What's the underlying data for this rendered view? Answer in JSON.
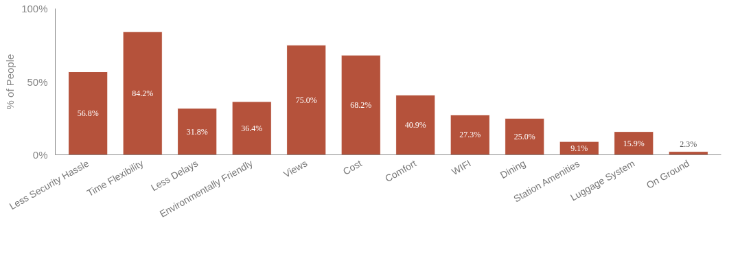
{
  "chart_data": {
    "type": "bar",
    "ylabel": "% of People",
    "categories": [
      "Less Security Hassle",
      "Time Flexibility",
      "Less Delays",
      "Environmentally Friendly",
      "Views",
      "Cost",
      "Comfort",
      "WIFI",
      "Dining",
      "Station Amenities",
      "Luggage System",
      "On Ground"
    ],
    "values": [
      56.8,
      84.2,
      31.8,
      36.4,
      75.0,
      68.2,
      40.9,
      27.3,
      25.0,
      9.1,
      15.9,
      2.3
    ],
    "value_labels": [
      "56.8%",
      "84.2%",
      "31.8%",
      "36.4%",
      "75.0%",
      "68.2%",
      "40.9%",
      "27.3%",
      "25.0%",
      "9.1%",
      "15.9%",
      "2.3%"
    ],
    "color": "#b5523b",
    "ylim": [
      0,
      100
    ],
    "yticks": [
      {
        "value": 0,
        "label": "0%"
      },
      {
        "value": 50,
        "label": "50%"
      },
      {
        "value": 100,
        "label": "100%"
      }
    ],
    "grid": false
  }
}
